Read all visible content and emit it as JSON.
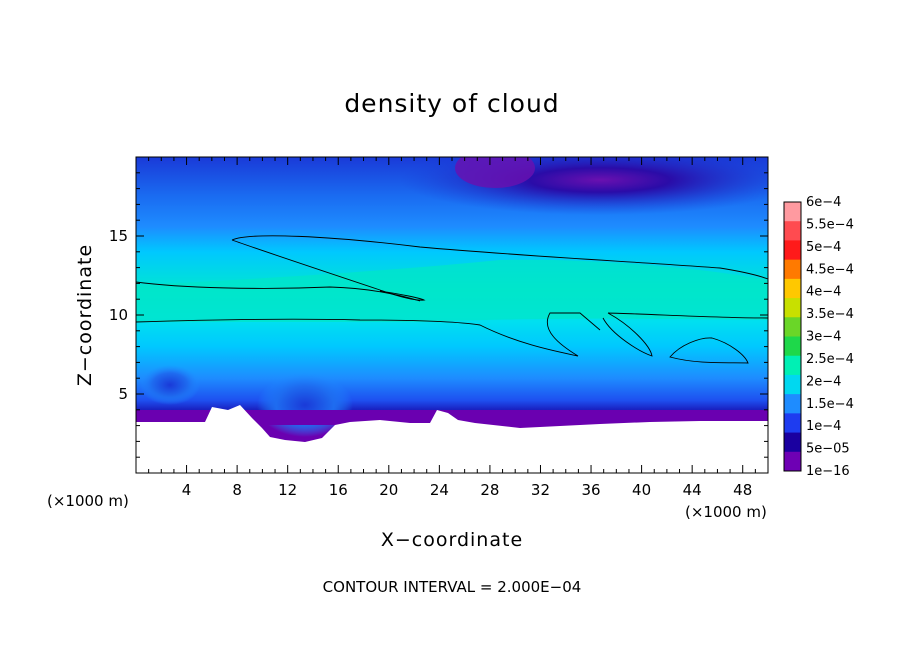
{
  "chart_data": {
    "type": "heatmap",
    "title": "density of cloud",
    "xlabel": "X−coordinate",
    "ylabel": "Z−coordinate",
    "x_unit_left": "(×1000 m)",
    "x_unit_right": "(×1000 m)",
    "xlim": [
      0,
      50
    ],
    "ylim": [
      0,
      20
    ],
    "x_ticks": [
      4,
      8,
      12,
      16,
      20,
      24,
      28,
      32,
      36,
      40,
      44,
      48
    ],
    "y_ticks": [
      5,
      10,
      15
    ],
    "x_tick_labels": [
      "4",
      "8",
      "12",
      "16",
      "20",
      "24",
      "28",
      "32",
      "36",
      "40",
      "44",
      "48"
    ],
    "y_tick_labels": [
      "5",
      "10",
      "15"
    ],
    "colorbar": {
      "labels": [
        "6e−4",
        "5.5e−4",
        "5e−4",
        "4.5e−4",
        "4e−4",
        "3.5e−4",
        "3e−4",
        "2.5e−4",
        "2e−4",
        "1.5e−4",
        "1e−4",
        "5e−05",
        "1e−16"
      ],
      "values": [
        0.0006,
        0.00055,
        0.0005,
        0.00045,
        0.0004,
        0.00035,
        0.0003,
        0.00025,
        0.0002,
        0.00015,
        0.0001,
        5e-05,
        1e-16
      ],
      "colors": [
        "#ff9aa0",
        "#ff4b50",
        "#ff1a1a",
        "#ff7a00",
        "#ffc800",
        "#c8e000",
        "#6ad628",
        "#1ed84a",
        "#00f0b4",
        "#00d8f0",
        "#1e8cff",
        "#1e3cf0",
        "#1a00a0",
        "#6e00b4"
      ]
    },
    "contour_interval": "CONTOUR INTERVAL = 2.000E−04",
    "fill_levels_description_colors": {
      "top_dark": "#2a0db0",
      "upper_blue": "#1a50e6",
      "mid_blue": "#1e8cff",
      "cyan": "#00d2ff",
      "band": "#00e6c8",
      "ground_purple": "#6a00b0",
      "ground_white": "#ffffff"
    },
    "grid": false,
    "legend": "right"
  }
}
